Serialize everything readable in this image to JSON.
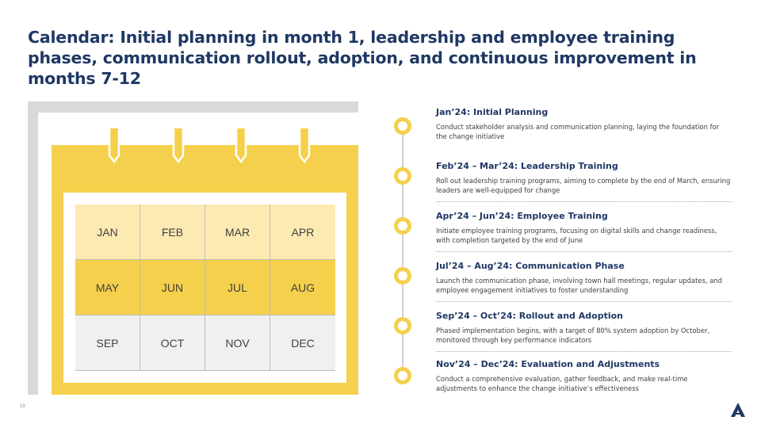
{
  "slide": {
    "title": "Calendar: Initial planning in month 1, leadership and employee training phases, communication rollout, adoption, and continuous improvement in months 7-12",
    "page_number": "18"
  },
  "calendar": {
    "rows": [
      [
        "JAN",
        "FEB",
        "MAR",
        "APR"
      ],
      [
        "MAY",
        "JUN",
        "JUL",
        "AUG"
      ],
      [
        "SEP",
        "OCT",
        "NOV",
        "DEC"
      ]
    ]
  },
  "timeline": [
    {
      "heading": "Jan’24: Initial Planning",
      "desc": "Conduct stakeholder analysis and communication planning, laying the foundation for the change initiative"
    },
    {
      "heading": "Feb’24 – Mar’24: Leadership Training",
      "desc": "Roll out leadership training programs, aiming to complete by the end of March, ensuring leaders are well-equipped for change"
    },
    {
      "heading": "Apr’24 – Jun’24: Employee Training",
      "desc": "Initiate employee training programs, focusing on digital skills and change readiness, with completion targeted by the end of June"
    },
    {
      "heading": "Jul’24 – Aug’24: Communication Phase",
      "desc": "Launch the communication phase, involving town hall meetings, regular updates, and employee engagement initiatives to foster understanding"
    },
    {
      "heading": "Sep’24 – Oct’24: Rollout and Adoption",
      "desc": "Phased implementation begins, with a target of 80% system adoption by October, monitored through key performance indicators"
    },
    {
      "heading": "Nov’24 – Dec’24: Evaluation and Adjustments",
      "desc": "Conduct a comprehensive evaluation, gather feedback, and make real-time adjustments to enhance the change initiative’s effectiveness"
    }
  ],
  "colors": {
    "title": "#1f3864",
    "accent_yellow": "#f5d04c",
    "light_yellow": "#fdeab2",
    "gray": "#f0f0f0"
  },
  "icons": [
    "calendar-ring-icon",
    "timeline-dot-icon",
    "company-logo-icon"
  ]
}
